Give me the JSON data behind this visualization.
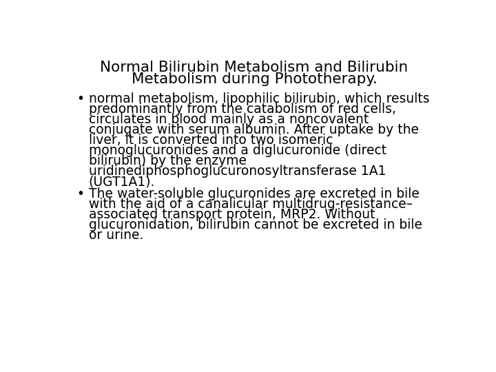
{
  "title_line1": "Normal Bilirubin Metabolism and Bilirubin",
  "title_line2": "Metabolism during Phototherapy.",
  "title_fontsize": 15.5,
  "title_color": "#000000",
  "background_color": "#ffffff",
  "bullet1_lines": [
    "normal metabolism, lipophilic bilirubin, which results",
    "predominantly from the catabolism of red cells,",
    "circulates in blood mainly as a noncovalent",
    "conjugate with serum albumin. After uptake by the",
    "liver, it is converted into two isomeric",
    "monoglucuronides and a diglucuronide (direct",
    "bilirubin) by the enzyme",
    "uridinediphosphoglucuronosyltransferase 1A1",
    "(UGT1A1)."
  ],
  "bullet2_lines": [
    "The water-soluble glucuronides are excreted in bile",
    "with the aid of a canalicular multidrug-resistance–",
    "associated transport protein, MRP2. Without",
    "glucuronidation, bilirubin cannot be excreted in bile",
    "or urine."
  ],
  "text_fontsize": 13.5,
  "text_color": "#000000",
  "font_family": "DejaVu Sans Mono"
}
